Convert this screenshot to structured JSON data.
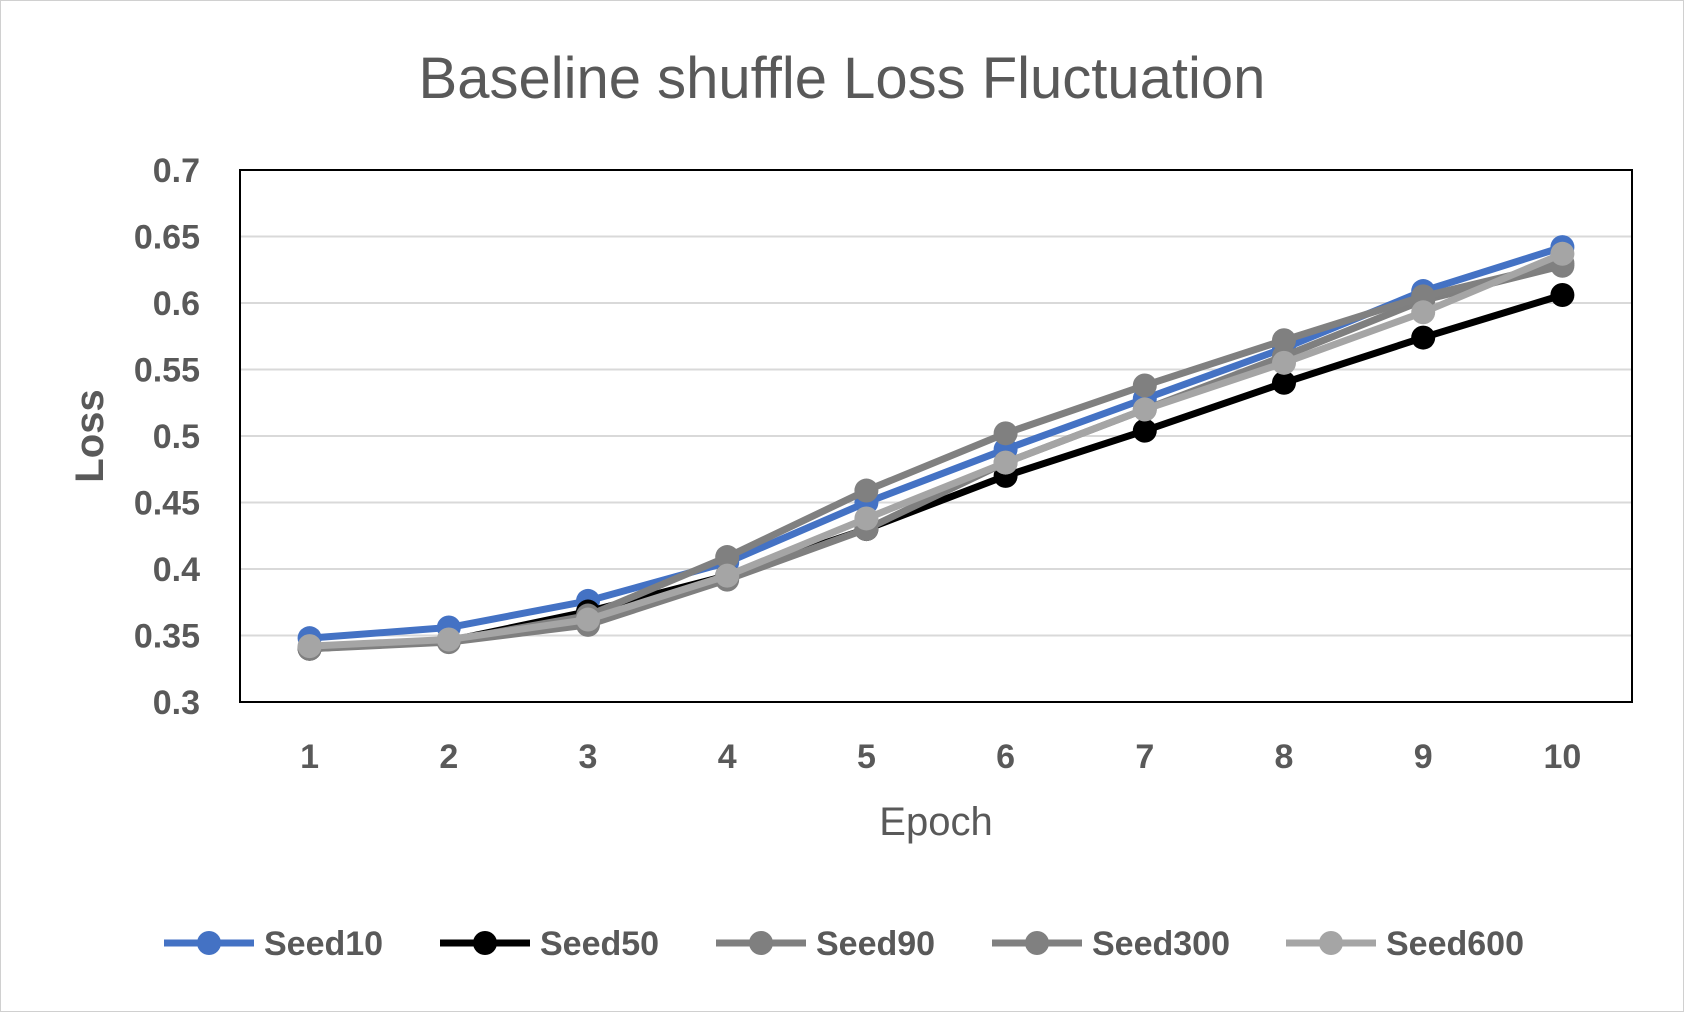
{
  "chart_data": {
    "type": "line",
    "title": "Baseline shuffle Loss Fluctuation",
    "xlabel": "Epoch",
    "ylabel": "Loss",
    "categories": [
      "1",
      "2",
      "3",
      "4",
      "5",
      "6",
      "7",
      "8",
      "9",
      "10"
    ],
    "ylim": [
      0.3,
      0.7
    ],
    "yticks": [
      "0.7",
      "0.65",
      "0.6",
      "0.55",
      "0.5",
      "0.45",
      "0.4",
      "0.35",
      "0.3"
    ],
    "grid": true,
    "legend_position": "bottom",
    "series": [
      {
        "name": "Seed10",
        "color": "#4472C4",
        "values": [
          0.348,
          0.356,
          0.376,
          0.405,
          0.45,
          0.49,
          0.528,
          0.566,
          0.609,
          0.642
        ]
      },
      {
        "name": "Seed50",
        "color": "#000000",
        "values": [
          0.34,
          0.346,
          0.368,
          0.395,
          0.43,
          0.47,
          0.504,
          0.54,
          0.574,
          0.606
        ]
      },
      {
        "name": "Seed90",
        "color": "#7F7F7F",
        "values": [
          0.34,
          0.345,
          0.358,
          0.392,
          0.43,
          0.48,
          0.52,
          0.56,
          0.602,
          0.628
        ]
      },
      {
        "name": "Seed300",
        "color": "#808080",
        "values": [
          0.341,
          0.346,
          0.365,
          0.409,
          0.459,
          0.502,
          0.538,
          0.572,
          0.605,
          0.63
        ]
      },
      {
        "name": "Seed600",
        "color": "#A5A5A5",
        "values": [
          0.342,
          0.347,
          0.362,
          0.395,
          0.438,
          0.48,
          0.52,
          0.555,
          0.593,
          0.637
        ]
      }
    ]
  }
}
